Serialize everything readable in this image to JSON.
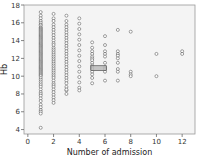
{
  "chart_data": {
    "type": "scatter",
    "xlabel": "Number of admission",
    "ylabel": "Hb",
    "xlim": [
      -0.3,
      13
    ],
    "ylim": [
      3.5,
      18.0
    ],
    "xticks": [
      0,
      2,
      4,
      6,
      8,
      10,
      12
    ],
    "yticks": [
      4,
      6,
      8,
      10,
      12,
      14,
      16,
      18
    ],
    "color": "white",
    "box": {
      "x": 5.5,
      "y": 10.9,
      "width": 1.2,
      "height": 0.55
    },
    "x": [
      1,
      1,
      1,
      1,
      1,
      1,
      1,
      1,
      1,
      1,
      1,
      1,
      1,
      1,
      1,
      1,
      1,
      1,
      1,
      1,
      1,
      1,
      1,
      1,
      1,
      1,
      1,
      1,
      1,
      1,
      1,
      1,
      1,
      1,
      1,
      1,
      1,
      1,
      1,
      1,
      1,
      1,
      1,
      1,
      1,
      1,
      1,
      1,
      1,
      1,
      1,
      1,
      1,
      1,
      1,
      1,
      1,
      1,
      1,
      1,
      1,
      1,
      1,
      1,
      1,
      1,
      1,
      1,
      1,
      1,
      1,
      1,
      1,
      1,
      1,
      1,
      1,
      1,
      1,
      1,
      1,
      2,
      2,
      2,
      2,
      2,
      2,
      2,
      2,
      2,
      2,
      2,
      2,
      2,
      2,
      2,
      2,
      2,
      2,
      2,
      2,
      2,
      2,
      2,
      2,
      2,
      2,
      2,
      2,
      2,
      2,
      2,
      2,
      2,
      2,
      2,
      2,
      2,
      2,
      2,
      2,
      3,
      3,
      3,
      3,
      3,
      3,
      3,
      3,
      3,
      3,
      3,
      3,
      3,
      3,
      3,
      3,
      3,
      3,
      3,
      3,
      3,
      3,
      3,
      3,
      3,
      3,
      3,
      3,
      3,
      4,
      4,
      4,
      4,
      4,
      4,
      4,
      4,
      4,
      4,
      4,
      4,
      4,
      4,
      4,
      5,
      5,
      5,
      5,
      5,
      5,
      5,
      5,
      5,
      5,
      5,
      5,
      5,
      5,
      5,
      6,
      6,
      6,
      6,
      6,
      6,
      6,
      6,
      6,
      6,
      7,
      7,
      7,
      7,
      7,
      7,
      7,
      7,
      7,
      8,
      8,
      8,
      8,
      10,
      10,
      12,
      12
    ],
    "values": [
      17.2,
      16.8,
      16.5,
      16.2,
      16.0,
      15.8,
      15.7,
      15.5,
      15.4,
      15.3,
      15.2,
      15.1,
      15.0,
      14.9,
      14.8,
      14.7,
      14.6,
      14.5,
      14.4,
      14.3,
      14.2,
      14.1,
      14.0,
      13.9,
      13.8,
      13.7,
      13.6,
      13.5,
      13.4,
      13.3,
      13.2,
      13.1,
      13.0,
      12.9,
      12.8,
      12.7,
      12.6,
      12.5,
      12.4,
      12.3,
      12.2,
      12.1,
      12.0,
      11.9,
      11.8,
      11.7,
      11.6,
      11.5,
      11.4,
      11.3,
      11.2,
      11.1,
      11.0,
      10.9,
      10.8,
      10.7,
      10.6,
      10.5,
      10.4,
      10.3,
      10.2,
      10.1,
      10.0,
      9.8,
      9.6,
      9.4,
      9.2,
      9.0,
      8.8,
      8.5,
      8.2,
      8.0,
      7.8,
      7.5,
      7.2,
      6.8,
      6.5,
      6.2,
      6.0,
      5.8,
      4.2,
      17.0,
      16.5,
      16.2,
      15.8,
      15.5,
      15.2,
      14.9,
      14.6,
      14.3,
      14.0,
      13.7,
      13.5,
      13.2,
      13.0,
      12.8,
      12.6,
      12.4,
      12.2,
      12.0,
      11.8,
      11.6,
      11.4,
      11.2,
      11.0,
      10.8,
      10.6,
      10.4,
      10.2,
      10.0,
      9.8,
      9.5,
      9.2,
      9.0,
      8.8,
      8.5,
      8.2,
      7.9,
      7.6,
      7.3,
      7.0,
      16.8,
      16.2,
      15.8,
      15.5,
      15.2,
      14.9,
      14.6,
      14.3,
      14.0,
      13.7,
      13.4,
      13.1,
      12.8,
      12.5,
      12.2,
      11.9,
      11.6,
      11.3,
      11.0,
      10.7,
      10.4,
      10.1,
      9.8,
      9.5,
      9.2,
      8.8,
      8.4,
      8.0,
      8.5,
      16.5,
      15.9,
      15.3,
      14.7,
      14.1,
      13.5,
      12.9,
      12.3,
      11.7,
      11.1,
      10.5,
      9.9,
      9.3,
      8.7,
      8.4,
      13.8,
      13.2,
      12.8,
      12.5,
      12.2,
      12.0,
      11.8,
      11.5,
      11.2,
      11.0,
      10.8,
      10.5,
      10.2,
      9.8,
      9.2,
      14.5,
      13.5,
      12.8,
      12.5,
      12.2,
      11.5,
      11.0,
      10.8,
      10.5,
      9.5,
      15.2,
      12.8,
      12.5,
      12.3,
      12.0,
      11.5,
      10.8,
      10.5,
      9.5,
      15.0,
      10.5,
      10.2,
      10.0,
      12.5,
      10.0,
      12.8,
      12.5
    ]
  }
}
